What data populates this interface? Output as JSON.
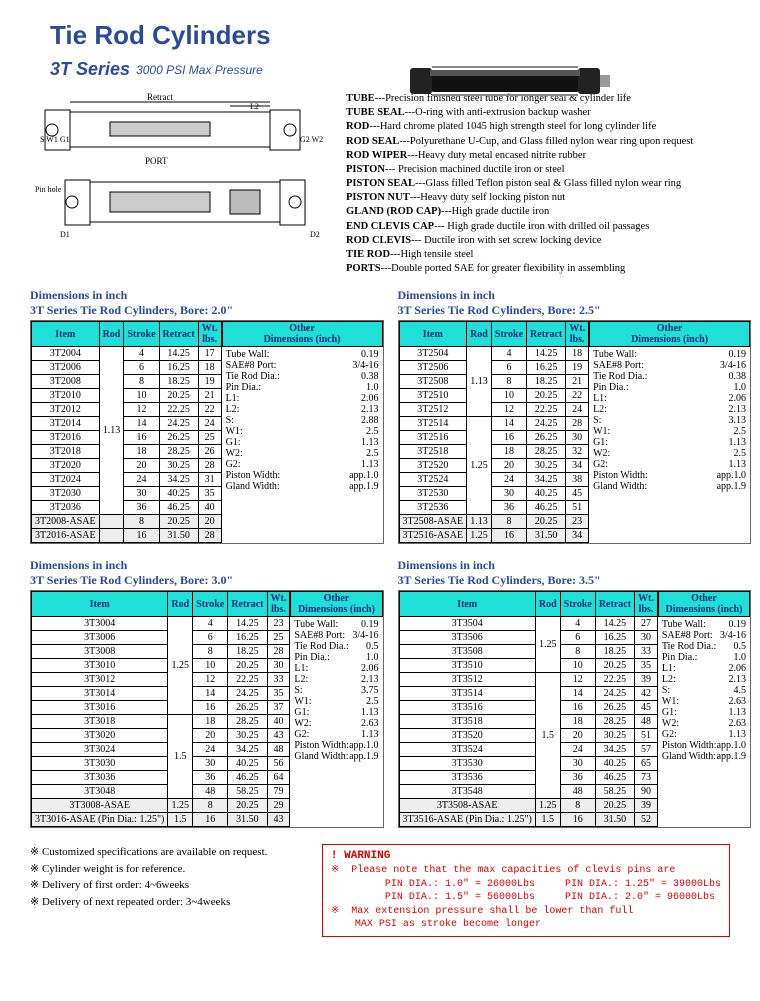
{
  "title": "Tie Rod Cylinders",
  "series": "3T Series",
  "series_note": "3000 PSI Max Pressure",
  "specs": [
    {
      "k": "TUBE",
      "v": "---Precision finished steel tube for longer seal & cylinder life"
    },
    {
      "k": "TUBE SEAL",
      "v": "---O-ring with anti-extrusion backup washer"
    },
    {
      "k": "ROD",
      "v": "---Hard chrome plated 1045 high strength steel for long cylinder life"
    },
    {
      "k": "ROD SEAL",
      "v": "---Polyurethane U-Cup, and Glass filled nylon wear ring upon request"
    },
    {
      "k": "ROD WIPER",
      "v": "---Heavy duty metal encased nitrite rubber"
    },
    {
      "k": "PISTON",
      "v": "--- Precision machined ductile iron or steel"
    },
    {
      "k": "PISTON SEAL",
      "v": "---Glass filled Teflon piston seal & Glass filled nylon wear ring"
    },
    {
      "k": "PISTON NUT",
      "v": "---Heavy duty self locking piston nut"
    },
    {
      "k": "GLAND (ROD CAP)",
      "v": "---High grade ductile iron"
    },
    {
      "k": "END CLEVIS CAP",
      "v": "--- High grade ductile iron with drilled oil passages"
    },
    {
      "k": "ROD CLEVIS",
      "v": "--- Ductile iron with set screw locking device"
    },
    {
      "k": "TIE ROD",
      "v": "---High tensile steel"
    },
    {
      "k": "PORTS",
      "v": "---Double ported SAE for greater flexibility in assembling"
    }
  ],
  "col_headers": [
    "Item",
    "Rod",
    "Stroke",
    "Retract",
    "Wt. lbs."
  ],
  "other_header": "Other Dimensions (inch)",
  "dim_label": "Dimensions in inch",
  "panels": [
    {
      "bore": "3T Series Tie Rod Cylinders, Bore: 2.0\"",
      "rod_groups": [
        {
          "rod": "1.13",
          "span": 12
        }
      ],
      "rows": [
        {
          "item": "3T2004",
          "stroke": "4",
          "retract": "14.25",
          "wt": "17"
        },
        {
          "item": "3T2006",
          "stroke": "6",
          "retract": "16.25",
          "wt": "18"
        },
        {
          "item": "3T2008",
          "stroke": "8",
          "retract": "18.25",
          "wt": "19"
        },
        {
          "item": "3T2010",
          "stroke": "10",
          "retract": "20.25",
          "wt": "21"
        },
        {
          "item": "3T2012",
          "stroke": "12",
          "retract": "22.25",
          "wt": "22"
        },
        {
          "item": "3T2014",
          "stroke": "14",
          "retract": "24.25",
          "wt": "24"
        },
        {
          "item": "3T2016",
          "stroke": "16",
          "retract": "26.25",
          "wt": "25"
        },
        {
          "item": "3T2018",
          "stroke": "18",
          "retract": "28.25",
          "wt": "26"
        },
        {
          "item": "3T2020",
          "stroke": "20",
          "retract": "30.25",
          "wt": "28"
        },
        {
          "item": "3T2024",
          "stroke": "24",
          "retract": "34.25",
          "wt": "31"
        },
        {
          "item": "3T2030",
          "stroke": "30",
          "retract": "40.25",
          "wt": "35"
        },
        {
          "item": "3T2036",
          "stroke": "36",
          "retract": "46.25",
          "wt": "40"
        },
        {
          "item": "3T2008-ASAE",
          "rod": "",
          "stroke": "8",
          "retract": "20.25",
          "wt": "20",
          "asae": true
        },
        {
          "item": "3T2016-ASAE",
          "rod": "",
          "stroke": "16",
          "retract": "31.50",
          "wt": "28",
          "asae": true
        }
      ],
      "other": [
        {
          "k": "Tube Wall:",
          "v": "0.19"
        },
        {
          "k": "SAE#8 Port:",
          "v": "3/4-16"
        },
        {
          "k": "Tie Rod Dia.:",
          "v": "0.38"
        },
        {
          "k": "Pin Dia.:",
          "v": "1.0"
        },
        {
          "k": "L1:",
          "v": "2.06"
        },
        {
          "k": "L2:",
          "v": "2.13"
        },
        {
          "k": "S:",
          "v": "2.88"
        },
        {
          "k": "W1:",
          "v": "2.5"
        },
        {
          "k": "G1:",
          "v": "1.13"
        },
        {
          "k": "W2:",
          "v": "2.5"
        },
        {
          "k": "G2:",
          "v": "1.13"
        },
        {
          "k": "Piston Width:",
          "v": "app.1.0"
        },
        {
          "k": "Gland Width:",
          "v": "app.1.9"
        }
      ]
    },
    {
      "bore": "3T Series Tie Rod Cylinders, Bore: 2.5\"",
      "rod_groups": [
        {
          "rod": "1.13",
          "span": 5
        },
        {
          "rod": "1.25",
          "span": 7
        }
      ],
      "rows": [
        {
          "item": "3T2504",
          "stroke": "4",
          "retract": "14.25",
          "wt": "18"
        },
        {
          "item": "3T2506",
          "stroke": "6",
          "retract": "16.25",
          "wt": "19"
        },
        {
          "item": "3T2508",
          "stroke": "8",
          "retract": "18.25",
          "wt": "21"
        },
        {
          "item": "3T2510",
          "stroke": "10",
          "retract": "20.25",
          "wt": "22"
        },
        {
          "item": "3T2512",
          "stroke": "12",
          "retract": "22.25",
          "wt": "24"
        },
        {
          "item": "3T2514",
          "stroke": "14",
          "retract": "24.25",
          "wt": "28"
        },
        {
          "item": "3T2516",
          "stroke": "16",
          "retract": "26.25",
          "wt": "30"
        },
        {
          "item": "3T2518",
          "stroke": "18",
          "retract": "28.25",
          "wt": "32"
        },
        {
          "item": "3T2520",
          "stroke": "20",
          "retract": "30.25",
          "wt": "34"
        },
        {
          "item": "3T2524",
          "stroke": "24",
          "retract": "34.25",
          "wt": "38"
        },
        {
          "item": "3T2530",
          "stroke": "30",
          "retract": "40.25",
          "wt": "45"
        },
        {
          "item": "3T2536",
          "stroke": "36",
          "retract": "46.25",
          "wt": "51"
        },
        {
          "item": "3T2508-ASAE",
          "rod": "1.13",
          "stroke": "8",
          "retract": "20.25",
          "wt": "23",
          "asae": true
        },
        {
          "item": "3T2516-ASAE",
          "rod": "1.25",
          "stroke": "16",
          "retract": "31.50",
          "wt": "34",
          "asae": true
        }
      ],
      "other": [
        {
          "k": "Tube Wall:",
          "v": "0.19"
        },
        {
          "k": "SAE#8 Port:",
          "v": "3/4-16"
        },
        {
          "k": "Tie Rod Dia.:",
          "v": "0.38"
        },
        {
          "k": "Pin Dia.:",
          "v": "1.0"
        },
        {
          "k": "L1:",
          "v": "2.06"
        },
        {
          "k": "L2:",
          "v": "2.13"
        },
        {
          "k": "S:",
          "v": "3.13"
        },
        {
          "k": "W1:",
          "v": "2.5"
        },
        {
          "k": "G1:",
          "v": "1.13"
        },
        {
          "k": "W2:",
          "v": "2.5"
        },
        {
          "k": "G2:",
          "v": "1.13"
        },
        {
          "k": "Piston Width:",
          "v": "app.1.0"
        },
        {
          "k": "Gland Width:",
          "v": "app.1.9"
        }
      ]
    },
    {
      "bore": "3T Series Tie Rod Cylinders, Bore: 3.0\"",
      "rod_groups": [
        {
          "rod": "1.25",
          "span": 7
        },
        {
          "rod": "1.5",
          "span": 6
        }
      ],
      "rows": [
        {
          "item": "3T3004",
          "stroke": "4",
          "retract": "14.25",
          "wt": "23"
        },
        {
          "item": "3T3006",
          "stroke": "6",
          "retract": "16.25",
          "wt": "25"
        },
        {
          "item": "3T3008",
          "stroke": "8",
          "retract": "18.25",
          "wt": "28"
        },
        {
          "item": "3T3010",
          "stroke": "10",
          "retract": "20.25",
          "wt": "30"
        },
        {
          "item": "3T3012",
          "stroke": "12",
          "retract": "22.25",
          "wt": "33"
        },
        {
          "item": "3T3014",
          "stroke": "14",
          "retract": "24.25",
          "wt": "35"
        },
        {
          "item": "3T3016",
          "stroke": "16",
          "retract": "26.25",
          "wt": "37"
        },
        {
          "item": "3T3018",
          "stroke": "18",
          "retract": "28.25",
          "wt": "40"
        },
        {
          "item": "3T3020",
          "stroke": "20",
          "retract": "30.25",
          "wt": "43"
        },
        {
          "item": "3T3024",
          "stroke": "24",
          "retract": "34.25",
          "wt": "48"
        },
        {
          "item": "3T3030",
          "stroke": "30",
          "retract": "40.25",
          "wt": "56"
        },
        {
          "item": "3T3036",
          "stroke": "36",
          "retract": "46.25",
          "wt": "64"
        },
        {
          "item": "3T3048",
          "stroke": "48",
          "retract": "58.25",
          "wt": "79"
        },
        {
          "item": "3T3008-ASAE",
          "rod": "1.25",
          "stroke": "8",
          "retract": "20.25",
          "wt": "29",
          "asae": true
        },
        {
          "item": "3T3016-ASAE (Pin Dia.: 1.25\")",
          "rod": "1.5",
          "stroke": "16",
          "retract": "31.50",
          "wt": "43",
          "asae": true
        }
      ],
      "other": [
        {
          "k": "Tube Wall:",
          "v": "0.19"
        },
        {
          "k": "SAE#8 Port:",
          "v": "3/4-16"
        },
        {
          "k": "Tie Rod Dia.:",
          "v": "0.5"
        },
        {
          "k": "Pin Dia.:",
          "v": "1.0"
        },
        {
          "k": "L1:",
          "v": "2.06"
        },
        {
          "k": "L2:",
          "v": "2.13"
        },
        {
          "k": "S:",
          "v": "3.75"
        },
        {
          "k": "W1:",
          "v": "2.5"
        },
        {
          "k": "G1:",
          "v": "1.13"
        },
        {
          "k": "W2:",
          "v": "2.63"
        },
        {
          "k": "G2:",
          "v": "1.13"
        },
        {
          "k": "Piston Width:",
          "v": "app.1.0"
        },
        {
          "k": "Gland Width:",
          "v": "app.1.9"
        }
      ]
    },
    {
      "bore": "3T Series Tie Rod Cylinders, Bore: 3.5\"",
      "rod_groups": [
        {
          "rod": "1.25",
          "span": 4
        },
        {
          "rod": "1.5",
          "span": 9
        }
      ],
      "rows": [
        {
          "item": "3T3504",
          "stroke": "4",
          "retract": "14.25",
          "wt": "27"
        },
        {
          "item": "3T3506",
          "stroke": "6",
          "retract": "16.25",
          "wt": "30"
        },
        {
          "item": "3T3508",
          "stroke": "8",
          "retract": "18.25",
          "wt": "33"
        },
        {
          "item": "3T3510",
          "stroke": "10",
          "retract": "20.25",
          "wt": "35"
        },
        {
          "item": "3T3512",
          "stroke": "12",
          "retract": "22.25",
          "wt": "39"
        },
        {
          "item": "3T3514",
          "stroke": "14",
          "retract": "24.25",
          "wt": "42"
        },
        {
          "item": "3T3516",
          "stroke": "16",
          "retract": "26.25",
          "wt": "45"
        },
        {
          "item": "3T3518",
          "stroke": "18",
          "retract": "28.25",
          "wt": "48"
        },
        {
          "item": "3T3520",
          "stroke": "20",
          "retract": "30.25",
          "wt": "51"
        },
        {
          "item": "3T3524",
          "stroke": "24",
          "retract": "34.25",
          "wt": "57"
        },
        {
          "item": "3T3530",
          "stroke": "30",
          "retract": "40.25",
          "wt": "65"
        },
        {
          "item": "3T3536",
          "stroke": "36",
          "retract": "46.25",
          "wt": "73"
        },
        {
          "item": "3T3548",
          "stroke": "48",
          "retract": "58.25",
          "wt": "90"
        },
        {
          "item": "3T3508-ASAE",
          "rod": "1.25",
          "stroke": "8",
          "retract": "20.25",
          "wt": "39",
          "asae": true
        },
        {
          "item": "3T3516-ASAE (Pin Dia.: 1.25\")",
          "rod": "1.5",
          "stroke": "16",
          "retract": "31.50",
          "wt": "52",
          "asae": true
        }
      ],
      "other": [
        {
          "k": "Tube Wall:",
          "v": "0.19"
        },
        {
          "k": "SAE#8 Port:",
          "v": "3/4-16"
        },
        {
          "k": "Tie Rod Dia.:",
          "v": "0.5"
        },
        {
          "k": "Pin Dia.:",
          "v": "1.0"
        },
        {
          "k": "L1:",
          "v": "2.06"
        },
        {
          "k": "L2:",
          "v": "2.13"
        },
        {
          "k": "S:",
          "v": "4.5"
        },
        {
          "k": "W1:",
          "v": "2.63"
        },
        {
          "k": "G1:",
          "v": "1.13"
        },
        {
          "k": "W2:",
          "v": "2.63"
        },
        {
          "k": "G2:",
          "v": "1.13"
        },
        {
          "k": "Piston Width:",
          "v": "app.1.0"
        },
        {
          "k": "Gland Width:",
          "v": "app.1.9"
        }
      ]
    }
  ],
  "notes": [
    "Customized specifications are available on request.",
    "Cylinder weight is for reference.",
    "Delivery of first order: 4~6weeks",
    "Delivery of next repeated order: 3~4weeks"
  ],
  "warning": {
    "title": "! WARNING",
    "lines": [
      "※  Please note that the max capacities of clevis pins are",
      "         PIN DIA.: 1.0\" = 26000Lbs     PIN DIA.: 1.25\" = 39000Lbs",
      "         PIN DIA.: 1.5\" = 56000Lbs     PIN DIA.: 2.0\" = 96000Lbs",
      "※  Max extension pressure shall be lower than full",
      "    MAX PSI as stroke become longer"
    ]
  }
}
